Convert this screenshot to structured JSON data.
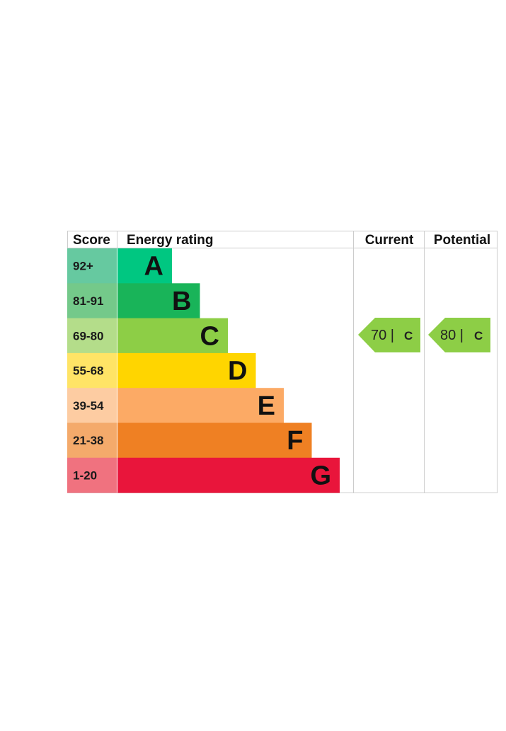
{
  "chart_data": {
    "type": "bar",
    "headers": {
      "score": "Score",
      "energy_rating": "Energy rating",
      "current": "Current",
      "potential": "Potential"
    },
    "bands": [
      {
        "score": "92+",
        "letter": "A",
        "color": "#00c781",
        "score_color": "#66c9a0"
      },
      {
        "score": "81-91",
        "letter": "B",
        "color": "#19b459",
        "score_color": "#74c98a"
      },
      {
        "score": "69-80",
        "letter": "C",
        "color": "#8dce46",
        "score_color": "#b4dd8a"
      },
      {
        "score": "55-68",
        "letter": "D",
        "color": "#ffd500",
        "score_color": "#ffe466"
      },
      {
        "score": "39-54",
        "letter": "E",
        "color": "#fcaa65",
        "score_color": "#fdcca2"
      },
      {
        "score": "21-38",
        "letter": "F",
        "color": "#ef8023",
        "score_color": "#f4aa6b"
      },
      {
        "score": "1-20",
        "letter": "G",
        "color": "#e9153b",
        "score_color": "#f0727f"
      }
    ],
    "current": {
      "value": 70,
      "band": "C",
      "text_value": "70 |",
      "text_band": "C",
      "color": "#8dce46"
    },
    "potential": {
      "value": 80,
      "band": "C",
      "text_value": "80 |",
      "text_band": "C",
      "color": "#8dce46"
    }
  }
}
